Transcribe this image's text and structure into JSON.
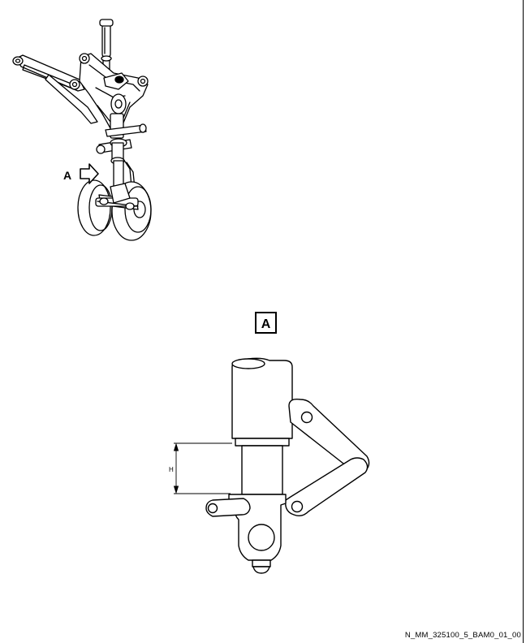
{
  "overview": {
    "view_arrow_label": "A"
  },
  "detail": {
    "view_label": "A",
    "dimension_label": "H"
  },
  "footer": {
    "reference": "N_MM_325100_5_BAM0_01_00"
  }
}
